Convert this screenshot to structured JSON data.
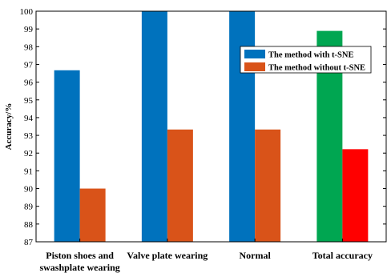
{
  "chart_data": {
    "type": "bar",
    "title": "",
    "xlabel": "",
    "ylabel": "Accuracy/%",
    "ylim": [
      87,
      100
    ],
    "yticks": [
      87,
      88,
      89,
      90,
      91,
      92,
      93,
      94,
      95,
      96,
      97,
      98,
      99,
      100
    ],
    "grid": false,
    "legend_position": "top-right",
    "categories": [
      [
        "Piston shoes and",
        "swashplate wearing"
      ],
      [
        "Valve plate wearing"
      ],
      [
        "Normal"
      ],
      [
        "Total accuracy"
      ]
    ],
    "series": [
      {
        "name": "The method with t-SNE",
        "values": [
          96.67,
          100,
          100,
          98.89
        ],
        "color": "#0072BD"
      },
      {
        "name": "The method without t-SNE",
        "values": [
          90.0,
          93.33,
          93.33,
          92.22
        ],
        "color": "#D95319"
      }
    ],
    "total_accuracy_colors": [
      "#00A651",
      "#FF0000"
    ]
  }
}
